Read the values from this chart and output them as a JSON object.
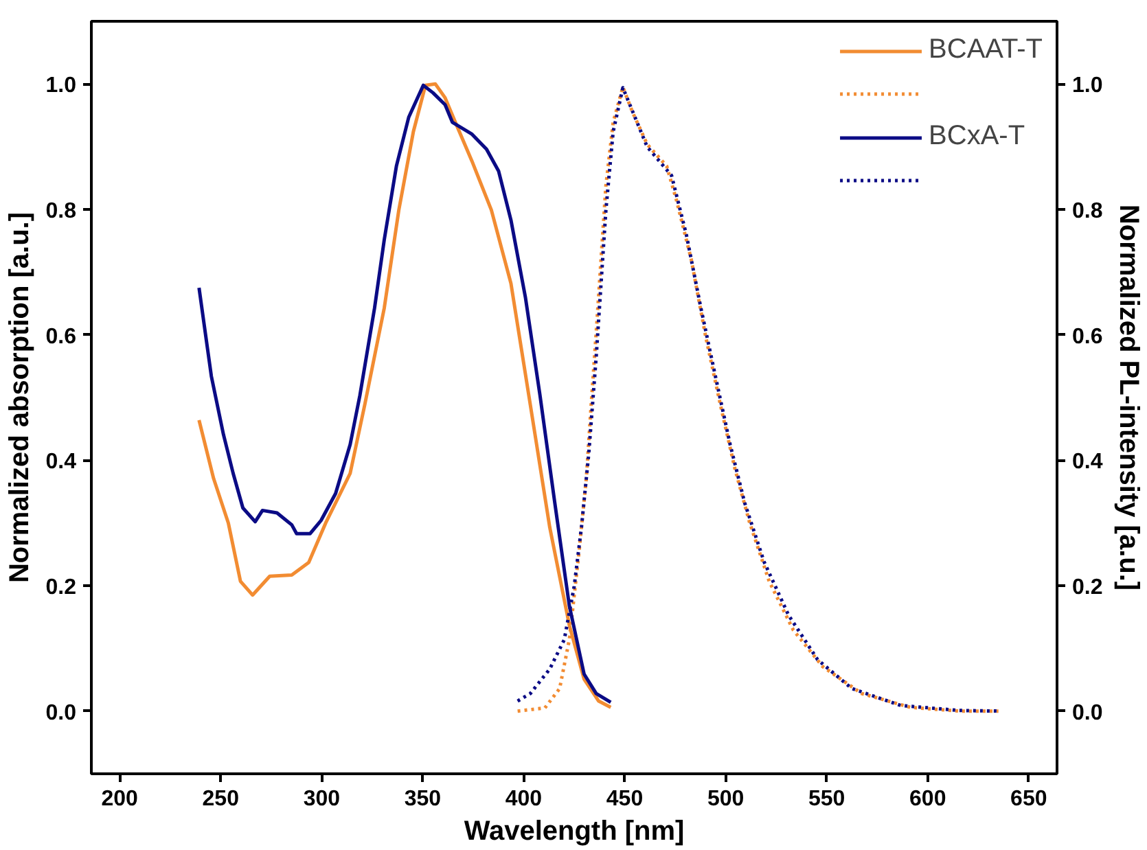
{
  "chart_data": {
    "type": "line",
    "xlabel": "Wavelength [nm]",
    "ylabel": "Normalized absorption [a.u.]",
    "y2label": "Normalized PL-intensity [a.u.]",
    "xlim": [
      186,
      664
    ],
    "ylim": [
      -0.1,
      1.1
    ],
    "y2lim": [
      -0.1,
      1.1
    ],
    "xticks": [
      200,
      250,
      300,
      350,
      400,
      450,
      500,
      550,
      600,
      650
    ],
    "yticks": [
      {
        "value": 0,
        "label": "0.0"
      },
      {
        "value": 0.2,
        "label": "0.2"
      },
      {
        "value": 0.4,
        "label": "0.4"
      },
      {
        "value": 0.6,
        "label": "0.6"
      },
      {
        "value": 0.8,
        "label": "0.8"
      },
      {
        "value": 1,
        "label": "1.0"
      }
    ],
    "y2ticks": [
      {
        "value": 0,
        "label": "0.0"
      },
      {
        "value": 0.2,
        "label": "0.2"
      },
      {
        "value": 0.4,
        "label": "0.4"
      },
      {
        "value": 0.6,
        "label": "0.6"
      },
      {
        "value": 0.8,
        "label": "0.8"
      },
      {
        "value": 1,
        "label": "1.0"
      }
    ],
    "grid": false,
    "legend": "top right",
    "marker": "none",
    "series": [
      {
        "name": "BCAAT-T",
        "color": "#f28c32",
        "line_style": "solid",
        "x": [
          239.3,
          246.5,
          253.8,
          259.8,
          265.8,
          274.3,
          285.2,
          293.6,
          302.0,
          314.1,
          321.3,
          331.0,
          338.2,
          345.4,
          351.4,
          356.3,
          361.1,
          367.1,
          374.4,
          384.0,
          393.7,
          403.3,
          412.9,
          422.6,
          429.9,
          437.1,
          443.1
        ],
        "values": [
          0.464,
          0.371,
          0.3,
          0.207,
          0.185,
          0.215,
          0.217,
          0.237,
          0.3,
          0.379,
          0.488,
          0.643,
          0.799,
          0.924,
          0.998,
          1.0,
          0.978,
          0.932,
          0.877,
          0.799,
          0.682,
          0.488,
          0.293,
          0.137,
          0.051,
          0.016,
          0.006
        ]
      },
      {
        "color": "#f28c32",
        "line_style": "dotted",
        "x": [
          397,
          410.5,
          417.8,
          422.6,
          427.4,
          431.0,
          433.4,
          435.9,
          438.3,
          440.7,
          444.3,
          449.1,
          453.9,
          461.1,
          470.8,
          475.6,
          482.9,
          490.1,
          497.4,
          504.6,
          511.8,
          521.5,
          533.5,
          548.0,
          567.3,
          591.4,
          615.5,
          635
        ],
        "values": [
          0.0,
          0.005,
          0.036,
          0.114,
          0.254,
          0.371,
          0.488,
          0.604,
          0.721,
          0.838,
          0.939,
          0.995,
          0.955,
          0.904,
          0.869,
          0.815,
          0.721,
          0.597,
          0.488,
          0.386,
          0.301,
          0.207,
          0.129,
          0.071,
          0.028,
          0.006,
          0.0,
          0.0
        ]
      },
      {
        "name": "BCxA-T",
        "color": "#0b0b85",
        "line_style": "solid",
        "x": [
          239.3,
          245.4,
          251.4,
          256.2,
          261.0,
          267.1,
          270.7,
          277.9,
          285.2,
          287.6,
          294.3,
          299.7,
          306.9,
          314.1,
          318.9,
          326.2,
          331.0,
          337.0,
          343.1,
          350.3,
          355.1,
          361.1,
          364.7,
          374.4,
          381.6,
          387.6,
          393.7,
          400.9,
          408.1,
          415.4,
          422.6,
          429.9,
          435.9,
          443.1
        ],
        "values": [
          0.675,
          0.534,
          0.441,
          0.379,
          0.324,
          0.302,
          0.32,
          0.316,
          0.297,
          0.283,
          0.283,
          0.304,
          0.347,
          0.425,
          0.503,
          0.643,
          0.752,
          0.869,
          0.947,
          0.998,
          0.986,
          0.967,
          0.939,
          0.92,
          0.896,
          0.861,
          0.783,
          0.659,
          0.503,
          0.332,
          0.168,
          0.059,
          0.028,
          0.014
        ]
      },
      {
        "color": "#0b0b85",
        "line_style": "dotted",
        "x": [
          397,
          403.3,
          412.9,
          420.1,
          425.0,
          428.6,
          432.2,
          435.9,
          438.3,
          440.7,
          444.3,
          449.1,
          455.1,
          461.1,
          473.2,
          480.5,
          487.7,
          494.9,
          502.2,
          509.4,
          519.0,
          531.1,
          545.5,
          562.4,
          586.6,
          615.5,
          635
        ],
        "values": [
          0.016,
          0.028,
          0.067,
          0.114,
          0.199,
          0.293,
          0.41,
          0.565,
          0.682,
          0.799,
          0.924,
          0.994,
          0.947,
          0.9,
          0.854,
          0.76,
          0.643,
          0.534,
          0.425,
          0.332,
          0.238,
          0.153,
          0.082,
          0.036,
          0.009,
          0.001,
          0.0
        ]
      }
    ]
  }
}
